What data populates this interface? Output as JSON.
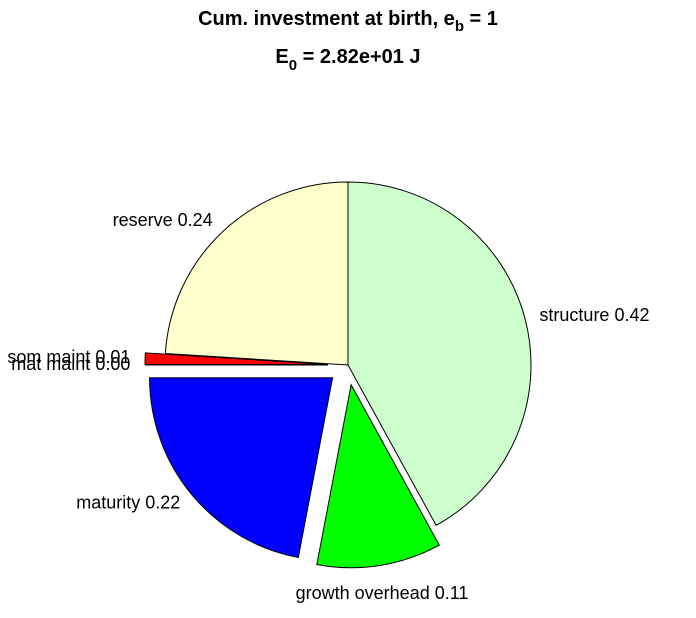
{
  "chart_data": {
    "type": "pie",
    "title": {
      "text": "Cum. investment at birth, e",
      "subscript": "b",
      "suffix": " = 1"
    },
    "subtitle": {
      "text": "E",
      "subscript": "0",
      "suffix": " = 2.82e+01 J"
    },
    "categories": [
      "structure",
      "growth overhead",
      "maturity",
      "mat maint",
      "som maint",
      "reserve"
    ],
    "values": [
      0.42,
      0.11,
      0.22,
      0,
      0.01,
      0.24
    ],
    "value_labels": [
      "0.42",
      "0.11",
      "0.22",
      "0.00",
      "0.01",
      "0.24"
    ],
    "colors": [
      "#ccffcc",
      "#00ff00",
      "#0000ff",
      "#000000",
      "#ff0000",
      "#ffffcc"
    ],
    "explode": [
      false,
      true,
      true,
      true,
      true,
      false
    ]
  }
}
